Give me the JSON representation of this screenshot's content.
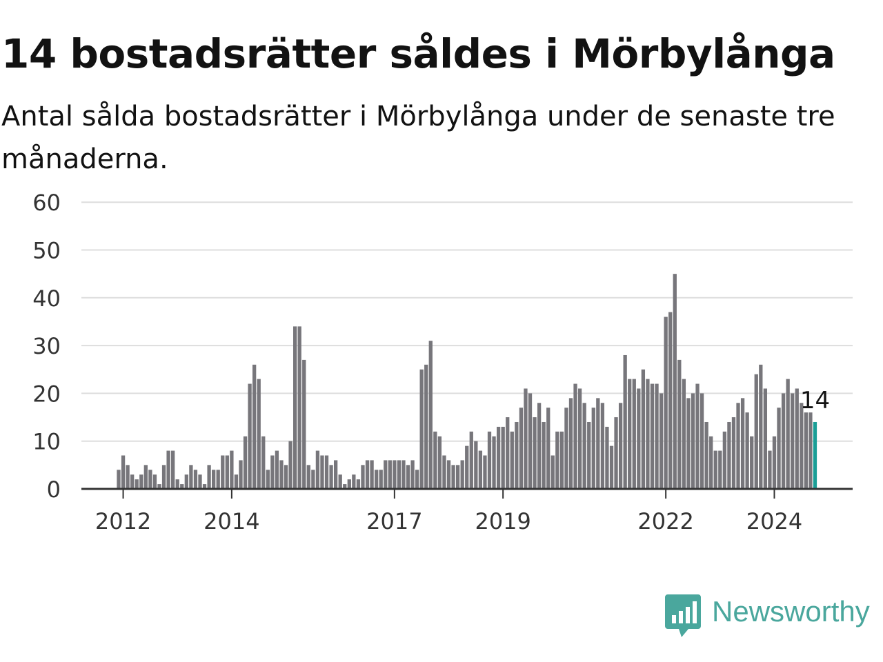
{
  "header": {
    "title": "14 bostadsrätter såldes i Mörbylånga",
    "subtitle": "Antal sålda bostadsrätter i Mörbylånga under de senaste tre månaderna."
  },
  "brand": {
    "name": "Newsworthy",
    "icon": "newsworthy-logo-icon",
    "color": "#4aa79d"
  },
  "chart_data": {
    "type": "bar",
    "start": "2011-12",
    "values": [
      4,
      7,
      5,
      3,
      2,
      3,
      5,
      4,
      3,
      1,
      5,
      8,
      8,
      2,
      1,
      3,
      5,
      4,
      3,
      1,
      5,
      4,
      4,
      7,
      7,
      8,
      3,
      6,
      11,
      22,
      26,
      23,
      11,
      4,
      7,
      8,
      6,
      5,
      10,
      34,
      34,
      27,
      5,
      4,
      8,
      7,
      7,
      5,
      6,
      3,
      1,
      2,
      3,
      2,
      5,
      6,
      6,
      4,
      4,
      6,
      6,
      6,
      6,
      6,
      5,
      6,
      4,
      25,
      26,
      31,
      12,
      11,
      7,
      6,
      5,
      5,
      6,
      9,
      12,
      10,
      8,
      7,
      12,
      11,
      13,
      13,
      15,
      12,
      14,
      17,
      21,
      20,
      15,
      18,
      14,
      17,
      7,
      12,
      12,
      17,
      19,
      22,
      21,
      18,
      14,
      17,
      19,
      18,
      13,
      9,
      15,
      18,
      28,
      23,
      23,
      21,
      25,
      23,
      22,
      22,
      20,
      36,
      37,
      45,
      27,
      23,
      19,
      20,
      22,
      20,
      14,
      11,
      8,
      8,
      12,
      14,
      15,
      18,
      19,
      16,
      11,
      24,
      26,
      21,
      8,
      11,
      17,
      20,
      23,
      20,
      21,
      18,
      16,
      16,
      14
    ],
    "x_ticks": [
      "2012",
      "2014",
      "2017",
      "2019",
      "2022",
      "2024"
    ],
    "y_ticks": [
      0,
      10,
      20,
      30,
      40,
      50,
      60
    ],
    "ylim": [
      0,
      60
    ],
    "last_value_label": "14",
    "bar_color": "#77767b",
    "highlight_color": "#1a9e96",
    "grid": true
  }
}
